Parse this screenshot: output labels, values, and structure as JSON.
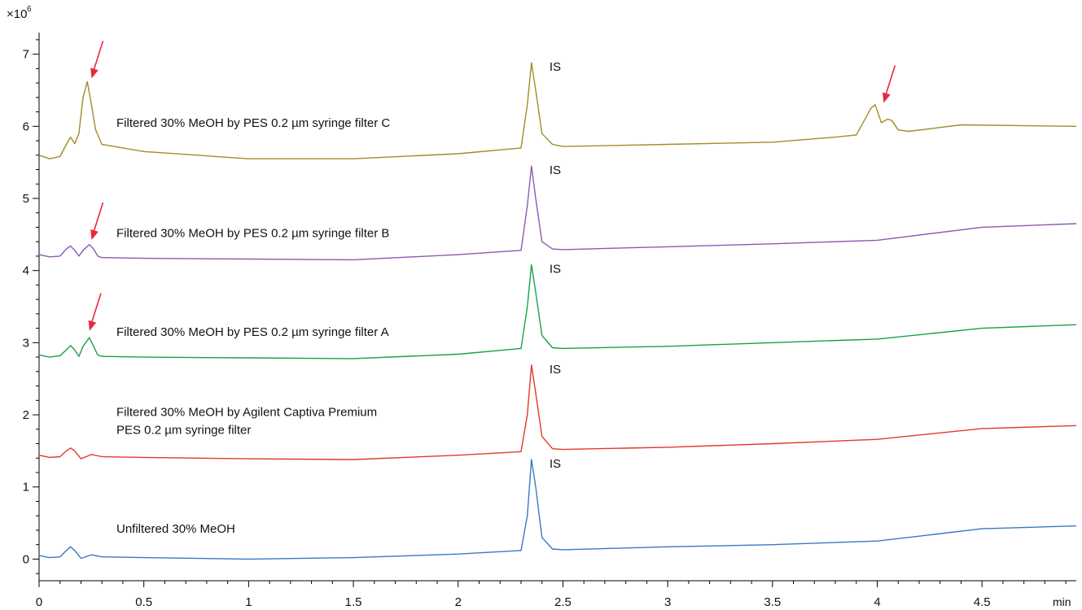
{
  "chart_data": {
    "type": "line",
    "xlabel": "min",
    "ylabel": "",
    "y_multiplier": {
      "base": "×10",
      "exponent": "6"
    },
    "xlim": [
      0,
      4.95
    ],
    "ylim": [
      -0.3,
      7.3
    ],
    "x_ticks": [
      0,
      0.5,
      1,
      1.5,
      2,
      2.5,
      3,
      3.5,
      4,
      4.5
    ],
    "x_tick_labels": [
      "0",
      "0.5",
      "1",
      "1.5",
      "2",
      "2.5",
      "3",
      "3.5",
      "4",
      "4.5"
    ],
    "y_ticks": [
      0,
      1,
      2,
      3,
      4,
      5,
      6,
      7
    ],
    "y_tick_labels": [
      "0",
      "1",
      "2",
      "3",
      "4",
      "5",
      "6",
      "7"
    ],
    "grid": false,
    "legend": "none",
    "peak_annotation": "IS",
    "series": [
      {
        "label_lines": [
          "Unfiltered 30% MeOH"
        ],
        "color": "#3a78c3",
        "x": [
          0,
          0.05,
          0.1,
          0.13,
          0.15,
          0.17,
          0.2,
          0.25,
          0.3,
          0.5,
          1.0,
          1.5,
          2.0,
          2.3,
          2.33,
          2.35,
          2.37,
          2.4,
          2.45,
          2.5,
          3.0,
          3.5,
          4.0,
          4.5,
          4.95
        ],
        "y": [
          0.05,
          0.02,
          0.03,
          0.12,
          0.17,
          0.12,
          0.01,
          0.06,
          0.03,
          0.02,
          0.0,
          0.02,
          0.07,
          0.12,
          0.6,
          1.38,
          1.0,
          0.3,
          0.14,
          0.13,
          0.17,
          0.2,
          0.25,
          0.42,
          0.46
        ]
      },
      {
        "label_lines": [
          "Filtered 30% MeOH by Agilent Captiva Premium",
          "PES 0.2 µm syringe filter"
        ],
        "color": "#e03a2a",
        "x": [
          0,
          0.05,
          0.1,
          0.13,
          0.15,
          0.17,
          0.2,
          0.25,
          0.3,
          0.5,
          1.0,
          1.5,
          2.0,
          2.3,
          2.33,
          2.35,
          2.37,
          2.4,
          2.45,
          2.5,
          3.0,
          3.5,
          4.0,
          4.5,
          4.95
        ],
        "y": [
          1.44,
          1.41,
          1.42,
          1.5,
          1.54,
          1.5,
          1.39,
          1.45,
          1.42,
          1.41,
          1.39,
          1.38,
          1.44,
          1.49,
          2.0,
          2.69,
          2.3,
          1.7,
          1.53,
          1.52,
          1.55,
          1.6,
          1.66,
          1.81,
          1.85
        ]
      },
      {
        "label_lines": [
          "Filtered 30% MeOH by PES 0.2 µm syringe filter A"
        ],
        "color": "#1aa04a",
        "x": [
          0,
          0.05,
          0.1,
          0.13,
          0.15,
          0.17,
          0.19,
          0.21,
          0.24,
          0.26,
          0.28,
          0.3,
          0.5,
          1.0,
          1.5,
          2.0,
          2.3,
          2.33,
          2.35,
          2.37,
          2.4,
          2.45,
          2.5,
          3.0,
          3.5,
          4.0,
          4.5,
          4.95
        ],
        "y": [
          2.83,
          2.8,
          2.82,
          2.9,
          2.96,
          2.9,
          2.81,
          2.95,
          3.07,
          2.95,
          2.83,
          2.81,
          2.8,
          2.79,
          2.78,
          2.84,
          2.92,
          3.5,
          4.08,
          3.7,
          3.1,
          2.93,
          2.92,
          2.95,
          3.0,
          3.05,
          3.2,
          3.25
        ]
      },
      {
        "label_lines": [
          "Filtered 30% MeOH by PES 0.2 µm syringe filter B"
        ],
        "color": "#8c5ab4",
        "x": [
          0,
          0.05,
          0.1,
          0.13,
          0.15,
          0.17,
          0.19,
          0.21,
          0.24,
          0.26,
          0.28,
          0.3,
          0.5,
          1.0,
          1.5,
          2.0,
          2.3,
          2.33,
          2.35,
          2.37,
          2.4,
          2.45,
          2.5,
          3.0,
          3.5,
          4.0,
          4.5,
          4.95
        ],
        "y": [
          4.22,
          4.19,
          4.2,
          4.3,
          4.34,
          4.28,
          4.2,
          4.28,
          4.36,
          4.3,
          4.2,
          4.18,
          4.17,
          4.16,
          4.15,
          4.22,
          4.28,
          4.9,
          5.45,
          5.0,
          4.4,
          4.3,
          4.29,
          4.33,
          4.37,
          4.42,
          4.6,
          4.65
        ]
      },
      {
        "label_lines": [
          "Filtered 30% MeOH by PES 0.2 µm syringe filter C"
        ],
        "color": "#a08c28",
        "x": [
          0,
          0.05,
          0.1,
          0.13,
          0.15,
          0.17,
          0.19,
          0.21,
          0.23,
          0.25,
          0.27,
          0.3,
          0.4,
          0.5,
          1.0,
          1.5,
          2.0,
          2.3,
          2.33,
          2.35,
          2.37,
          2.4,
          2.45,
          2.5,
          3.0,
          3.5,
          3.8,
          3.9,
          3.97,
          3.99,
          4.02,
          4.05,
          4.07,
          4.1,
          4.15,
          4.4,
          4.95
        ],
        "y": [
          5.6,
          5.55,
          5.58,
          5.75,
          5.85,
          5.76,
          5.9,
          6.4,
          6.62,
          6.3,
          5.95,
          5.75,
          5.7,
          5.65,
          5.55,
          5.55,
          5.62,
          5.7,
          6.3,
          6.88,
          6.5,
          5.9,
          5.75,
          5.72,
          5.75,
          5.78,
          5.85,
          5.88,
          6.25,
          6.3,
          6.05,
          6.1,
          6.08,
          5.95,
          5.93,
          6.02,
          6.0
        ]
      }
    ],
    "arrows": [
      {
        "x": 0.27,
        "y": 6.62
      },
      {
        "x": 0.27,
        "y": 4.38
      },
      {
        "x": 0.26,
        "y": 3.12
      },
      {
        "x": 4.05,
        "y": 6.28
      }
    ]
  }
}
